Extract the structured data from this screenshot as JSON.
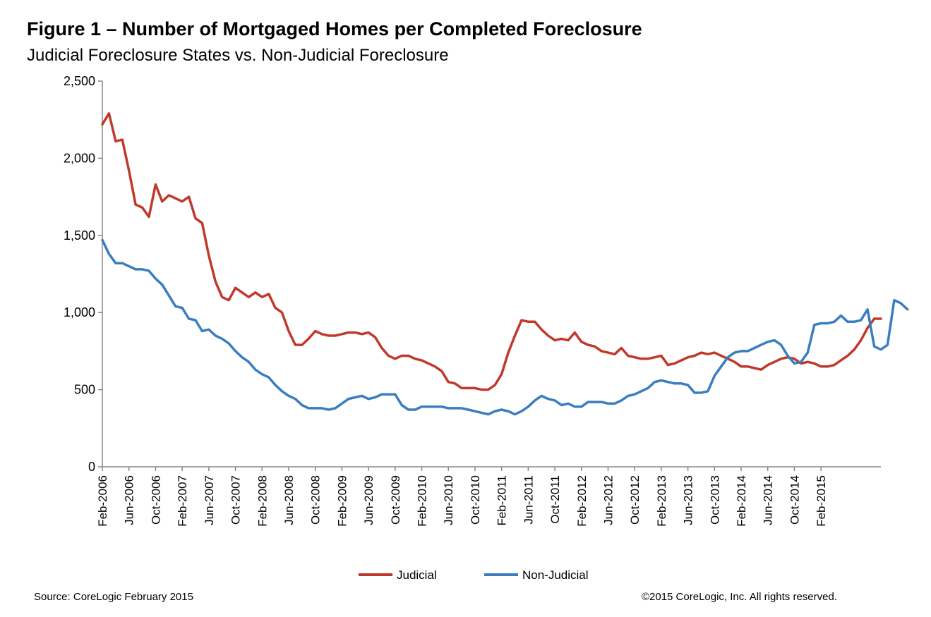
{
  "chart_data": {
    "type": "line",
    "title": "Figure 1 – Number of Mortgaged Homes per Completed Foreclosure",
    "subtitle": "Judicial Foreclosure States vs. Non-Judicial Foreclosure",
    "xlabel": "",
    "ylabel": "",
    "ylim": [
      0,
      2500
    ],
    "y_ticks": [
      0,
      500,
      1000,
      1500,
      2000,
      2500
    ],
    "y_tick_labels": [
      "0",
      "500",
      "1,000",
      "1,500",
      "2,000",
      "2,500"
    ],
    "x_start": "2006-02",
    "x_end": "2015-02",
    "x_tick_labels": [
      "Feb-2006",
      "Jun-2006",
      "Oct-2006",
      "Feb-2007",
      "Jun-2007",
      "Oct-2007",
      "Feb-2008",
      "Jun-2008",
      "Oct-2008",
      "Feb-2009",
      "Jun-2009",
      "Oct-2009",
      "Feb-2010",
      "Jun-2010",
      "Oct-2010",
      "Feb-2011",
      "Jun-2011",
      "Oct-2011",
      "Feb-2012",
      "Jun-2012",
      "Oct-2012",
      "Feb-2013",
      "Jun-2013",
      "Oct-2013",
      "Feb-2014",
      "Jun-2014",
      "Oct-2014",
      "Feb-2015"
    ],
    "grid": false,
    "legend_position": "bottom",
    "series": [
      {
        "name": "Judicial",
        "color": "#c0392b",
        "values": [
          2220,
          2290,
          2110,
          2120,
          1920,
          1700,
          1680,
          1620,
          1830,
          1720,
          1760,
          1740,
          1720,
          1750,
          1610,
          1580,
          1370,
          1200,
          1100,
          1080,
          1160,
          1130,
          1100,
          1130,
          1100,
          1120,
          1030,
          1000,
          880,
          790,
          790,
          830,
          880,
          860,
          850,
          850,
          860,
          870,
          870,
          860,
          870,
          840,
          770,
          720,
          700,
          720,
          720,
          700,
          690,
          670,
          650,
          620,
          550,
          540,
          510,
          510,
          510,
          500,
          500,
          530,
          600,
          740,
          850,
          950,
          940,
          940,
          890,
          850,
          820,
          830,
          820,
          870,
          810,
          790,
          780,
          750,
          740,
          730,
          770,
          720,
          710,
          700,
          700,
          710,
          720,
          660,
          670,
          690,
          710,
          720,
          740,
          730,
          740,
          720,
          700,
          680,
          650,
          650,
          640,
          630,
          660,
          680,
          700,
          710,
          700,
          670,
          680,
          670,
          650,
          650,
          660,
          690,
          720,
          760,
          820,
          900,
          960,
          960
        ]
      },
      {
        "name": "Non-Judicial",
        "color": "#3a7dc0",
        "values": [
          1470,
          1380,
          1320,
          1320,
          1300,
          1280,
          1280,
          1270,
          1220,
          1180,
          1110,
          1040,
          1030,
          960,
          950,
          880,
          890,
          850,
          830,
          800,
          750,
          710,
          680,
          630,
          600,
          580,
          530,
          490,
          460,
          440,
          400,
          380,
          380,
          380,
          370,
          380,
          410,
          440,
          450,
          460,
          440,
          450,
          470,
          470,
          470,
          400,
          370,
          370,
          390,
          390,
          390,
          390,
          380,
          380,
          380,
          370,
          360,
          350,
          340,
          360,
          370,
          360,
          340,
          360,
          390,
          430,
          460,
          440,
          430,
          400,
          410,
          390,
          390,
          420,
          420,
          420,
          410,
          410,
          430,
          460,
          470,
          490,
          510,
          550,
          560,
          550,
          540,
          540,
          530,
          480,
          480,
          490,
          590,
          650,
          710,
          740,
          750,
          750,
          770,
          790,
          810,
          820,
          790,
          720,
          670,
          680,
          740,
          920,
          930,
          930,
          940,
          980,
          940,
          940,
          950,
          1020,
          780,
          760,
          790,
          1080,
          1060,
          1020
        ]
      }
    ]
  },
  "footer": {
    "source": "Source: CoreLogic February 2015",
    "copyright": "©2015 CoreLogic, Inc. All rights reserved."
  }
}
